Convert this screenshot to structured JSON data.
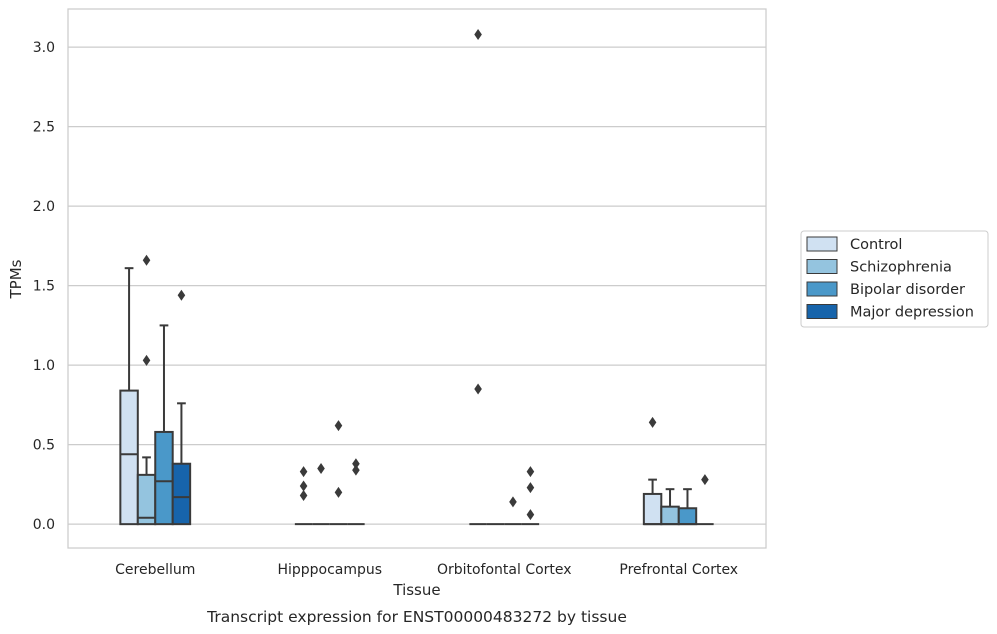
{
  "caption": "Transcript expression for ENST00000483272 by tissue",
  "chart_data": {
    "type": "box",
    "title": "",
    "xlabel": "Tissue",
    "ylabel": "TPMs",
    "ylim": [
      -0.15,
      3.24
    ],
    "yticks": [
      "0.0",
      "0.5",
      "1.0",
      "1.5",
      "2.0",
      "2.5",
      "3.0"
    ],
    "ytick_values": [
      0,
      0.5,
      1.0,
      1.5,
      2.0,
      2.5,
      3.0
    ],
    "grid": "horizontal",
    "legend_placement": "right",
    "categories": [
      "Cerebellum",
      "Hipppocampus",
      "Orbitofontal Cortex",
      "Prefrontal Cortex"
    ],
    "series": [
      {
        "name": "Control",
        "color": "#d0e1f2",
        "boxes": [
          {
            "q1": 0,
            "median": 0.44,
            "q3": 0.84,
            "whisker_low": 0,
            "whisker_high": 1.61,
            "outliers": []
          },
          {
            "q1": 0,
            "median": 0,
            "q3": 0,
            "whisker_low": 0,
            "whisker_high": 0,
            "outliers": [
              0.33,
              0.24,
              0.18
            ]
          },
          {
            "q1": 0,
            "median": 0,
            "q3": 0,
            "whisker_low": 0,
            "whisker_high": 0,
            "outliers": [
              3.08,
              0.85
            ]
          },
          {
            "q1": 0,
            "median": 0,
            "q3": 0.19,
            "whisker_low": 0,
            "whisker_high": 0.28,
            "outliers": [
              0.64
            ]
          }
        ]
      },
      {
        "name": "Schizophrenia",
        "color": "#94c4df",
        "boxes": [
          {
            "q1": 0,
            "median": 0.04,
            "q3": 0.31,
            "whisker_low": 0,
            "whisker_high": 0.42,
            "outliers": [
              1.66,
              1.03
            ]
          },
          {
            "q1": 0,
            "median": 0,
            "q3": 0,
            "whisker_low": 0,
            "whisker_high": 0,
            "outliers": [
              0.35
            ]
          },
          {
            "q1": 0,
            "median": 0,
            "q3": 0,
            "whisker_low": 0,
            "whisker_high": 0,
            "outliers": []
          },
          {
            "q1": 0,
            "median": 0,
            "q3": 0.11,
            "whisker_low": 0,
            "whisker_high": 0.22,
            "outliers": []
          }
        ]
      },
      {
        "name": "Bipolar disorder",
        "color": "#4a98c9",
        "boxes": [
          {
            "q1": 0,
            "median": 0.27,
            "q3": 0.58,
            "whisker_low": 0,
            "whisker_high": 1.25,
            "outliers": []
          },
          {
            "q1": 0,
            "median": 0,
            "q3": 0,
            "whisker_low": 0,
            "whisker_high": 0,
            "outliers": [
              0.62,
              0.2
            ]
          },
          {
            "q1": 0,
            "median": 0,
            "q3": 0,
            "whisker_low": 0,
            "whisker_high": 0,
            "outliers": [
              0.14
            ]
          },
          {
            "q1": 0,
            "median": 0,
            "q3": 0.1,
            "whisker_low": 0,
            "whisker_high": 0.22,
            "outliers": []
          }
        ]
      },
      {
        "name": "Major depression",
        "color": "#1764ab",
        "boxes": [
          {
            "q1": 0,
            "median": 0.17,
            "q3": 0.38,
            "whisker_low": 0,
            "whisker_high": 0.76,
            "outliers": [
              1.44
            ]
          },
          {
            "q1": 0,
            "median": 0,
            "q3": 0,
            "whisker_low": 0,
            "whisker_high": 0,
            "outliers": [
              0.38,
              0.34
            ]
          },
          {
            "q1": 0,
            "median": 0,
            "q3": 0,
            "whisker_low": 0,
            "whisker_high": 0,
            "outliers": [
              0.33,
              0.23,
              0.06
            ]
          },
          {
            "q1": 0,
            "median": 0,
            "q3": 0,
            "whisker_low": 0,
            "whisker_high": 0,
            "outliers": [
              0.28
            ]
          }
        ]
      }
    ]
  }
}
